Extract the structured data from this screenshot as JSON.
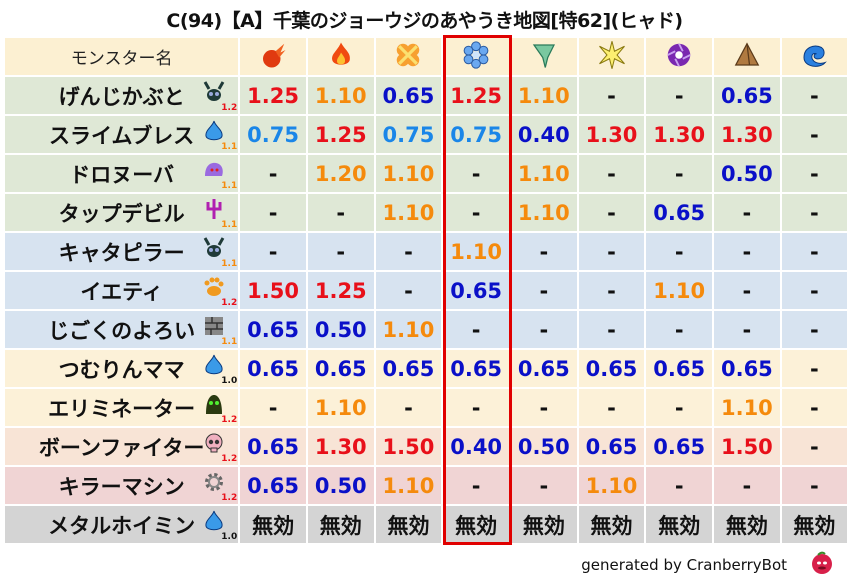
{
  "title": "C(94)【A】千葉のジョーウジのあやうき地図[特62](ヒャド)",
  "header": {
    "name_label": "モンスター名",
    "elements": [
      "meteor-fire-icon",
      "flame-icon",
      "explosion-icon",
      "ice-icon",
      "wind-icon",
      "light-icon",
      "dark-icon",
      "earth-icon",
      "water-icon"
    ],
    "highlighted_column": 3
  },
  "colors": {
    "high": "#e8101a",
    "mid": "#f58a0c",
    "low_light": "#1a86e8",
    "low": "#0a10c8",
    "neutral": "#111111",
    "header_bg": "#fcf0d2",
    "highlight_border": "#e00000"
  },
  "chart_data": {
    "type": "table",
    "columns": [
      "モンスター名",
      "meteor-fire",
      "flame",
      "explosion",
      "ice",
      "wind",
      "light",
      "dark",
      "earth",
      "water"
    ],
    "rows": [
      {
        "name": "げんじかぶと",
        "icon": "fly-beetle-icon",
        "level": "1.2",
        "level_color": "#e8101a",
        "bg": "#dfe8d6",
        "values": [
          "1.25",
          "1.10",
          "0.65",
          "1.25",
          "1.10",
          "-",
          "-",
          "0.65",
          "-"
        ]
      },
      {
        "name": "スライムブレス",
        "icon": "slime-icon",
        "level": "1.1",
        "level_color": "#f58a0c",
        "bg": "#dfe8d6",
        "values": [
          "0.75",
          "1.25",
          "0.75",
          "0.75",
          "0.40",
          "1.30",
          "1.30",
          "1.30",
          "-"
        ]
      },
      {
        "name": "ドロヌーバ",
        "icon": "mud-monster-icon",
        "level": "1.1",
        "level_color": "#f58a0c",
        "bg": "#dfe8d6",
        "values": [
          "-",
          "1.20",
          "1.10",
          "-",
          "1.10",
          "-",
          "-",
          "0.50",
          "-"
        ]
      },
      {
        "name": "タップデビル",
        "icon": "trident-devil-icon",
        "level": "1.1",
        "level_color": "#f58a0c",
        "bg": "#dfe8d6",
        "values": [
          "-",
          "-",
          "1.10",
          "-",
          "1.10",
          "-",
          "0.65",
          "-",
          "-"
        ]
      },
      {
        "name": "キャタピラー",
        "icon": "fly-beetle-icon",
        "level": "1.1",
        "level_color": "#f58a0c",
        "bg": "#d7e3f0",
        "values": [
          "-",
          "-",
          "-",
          "1.10",
          "-",
          "-",
          "-",
          "-",
          "-"
        ]
      },
      {
        "name": "イエティ",
        "icon": "paw-icon",
        "level": "1.2",
        "level_color": "#e8101a",
        "bg": "#d7e3f0",
        "values": [
          "1.50",
          "1.25",
          "-",
          "0.65",
          "-",
          "-",
          "1.10",
          "-",
          "-"
        ]
      },
      {
        "name": "じごくのよろい",
        "icon": "brick-icon",
        "level": "1.1",
        "level_color": "#f58a0c",
        "bg": "#d7e3f0",
        "values": [
          "0.65",
          "0.50",
          "1.10",
          "-",
          "-",
          "-",
          "-",
          "-",
          "-"
        ]
      },
      {
        "name": "つむりんママ",
        "icon": "slime-icon",
        "level": "1.0",
        "level_color": "#111111",
        "bg": "#fcf1d8",
        "values": [
          "0.65",
          "0.65",
          "0.65",
          "0.65",
          "0.65",
          "0.65",
          "0.65",
          "0.65",
          "-"
        ]
      },
      {
        "name": "エリミネーター",
        "icon": "ghost-hood-icon",
        "level": "1.2",
        "level_color": "#e8101a",
        "bg": "#fcf1d8",
        "values": [
          "-",
          "1.10",
          "-",
          "-",
          "-",
          "-",
          "-",
          "1.10",
          "-"
        ]
      },
      {
        "name": "ボーンファイター",
        "icon": "skull-icon",
        "level": "1.2",
        "level_color": "#e8101a",
        "bg": "#f8e4d6",
        "values": [
          "0.65",
          "1.30",
          "1.50",
          "0.40",
          "0.50",
          "0.65",
          "0.65",
          "1.50",
          "-"
        ]
      },
      {
        "name": "キラーマシン",
        "icon": "gear-icon",
        "level": "1.2",
        "level_color": "#e8101a",
        "bg": "#f0d4d4",
        "values": [
          "0.65",
          "0.50",
          "1.10",
          "-",
          "-",
          "1.10",
          "-",
          "-",
          "-"
        ]
      },
      {
        "name": "メタルホイミン",
        "icon": "slime-icon",
        "level": "1.0",
        "level_color": "#111111",
        "bg": "#d4d4d4",
        "values": [
          "無効",
          "無効",
          "無効",
          "無効",
          "無効",
          "無効",
          "無効",
          "無効",
          "無効"
        ]
      }
    ]
  },
  "footer": {
    "text": "generated by CranberryBot",
    "logo": "cranberry-bot-icon"
  }
}
